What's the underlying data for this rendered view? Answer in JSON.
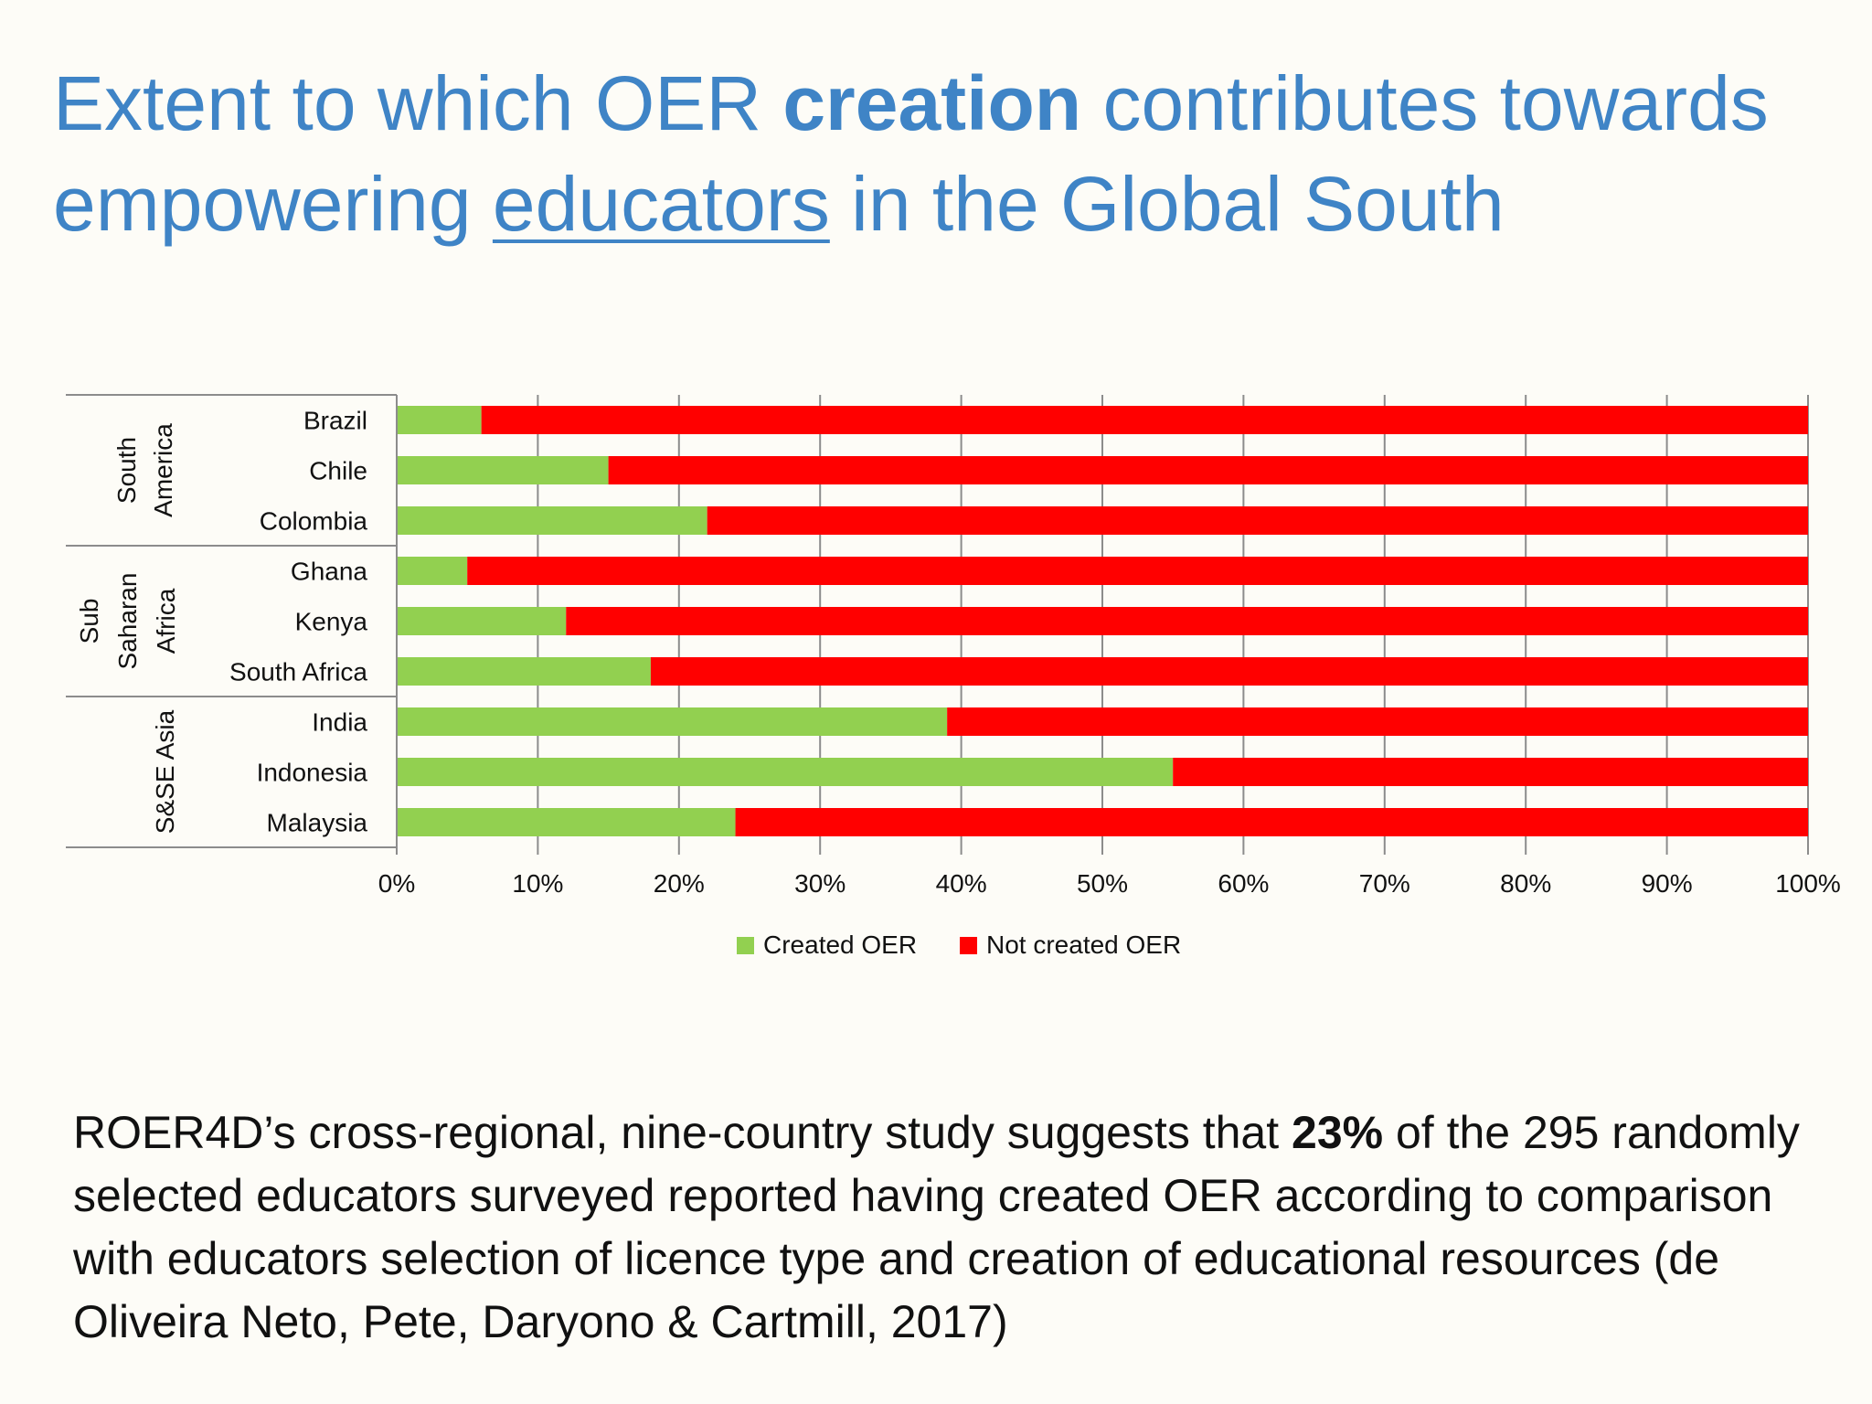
{
  "title": {
    "part1": "Extent to which OER ",
    "bold": "creation",
    "part2": " contributes towards empowering ",
    "underlined": "educators",
    "part3": " in the Global South"
  },
  "body": {
    "part1": "ROER4D’s cross-regional, nine-country study suggests that ",
    "bold": "23%",
    "part2": " of the 295 randomly selected educators surveyed reported having created OER according to comparison with educators selection of licence type and creation of educational resources (de Oliveira Neto, Pete, Daryono & Cartmill, 2017)"
  },
  "chart_data": {
    "type": "bar",
    "orientation": "horizontal",
    "stacked": "100%",
    "categories": [
      "Brazil",
      "Chile",
      "Colombia",
      "Ghana",
      "Kenya",
      "South Africa",
      "India",
      "Indonesia",
      "Malaysia"
    ],
    "groups": [
      {
        "lines": [
          "South",
          "America"
        ],
        "categories": [
          "Brazil",
          "Chile",
          "Colombia"
        ]
      },
      {
        "lines": [
          "Sub",
          "Saharan",
          "Africa"
        ],
        "categories": [
          "Ghana",
          "Kenya",
          "South Africa"
        ]
      },
      {
        "lines": [
          "S&SE Asia"
        ],
        "categories": [
          "India",
          "Indonesia",
          "Malaysia"
        ]
      }
    ],
    "series": [
      {
        "name": "Created OER",
        "color": "#92d050",
        "values": [
          6,
          15,
          22,
          5,
          12,
          18,
          39,
          55,
          24
        ]
      },
      {
        "name": "Not created OER",
        "color": "#ff0000",
        "values": [
          94,
          85,
          78,
          95,
          88,
          82,
          61,
          45,
          76
        ]
      }
    ],
    "xlim": [
      0,
      100
    ],
    "x_ticks": [
      "0%",
      "10%",
      "20%",
      "30%",
      "40%",
      "50%",
      "60%",
      "70%",
      "80%",
      "90%",
      "100%"
    ],
    "grid": true,
    "legend": "bottom"
  }
}
